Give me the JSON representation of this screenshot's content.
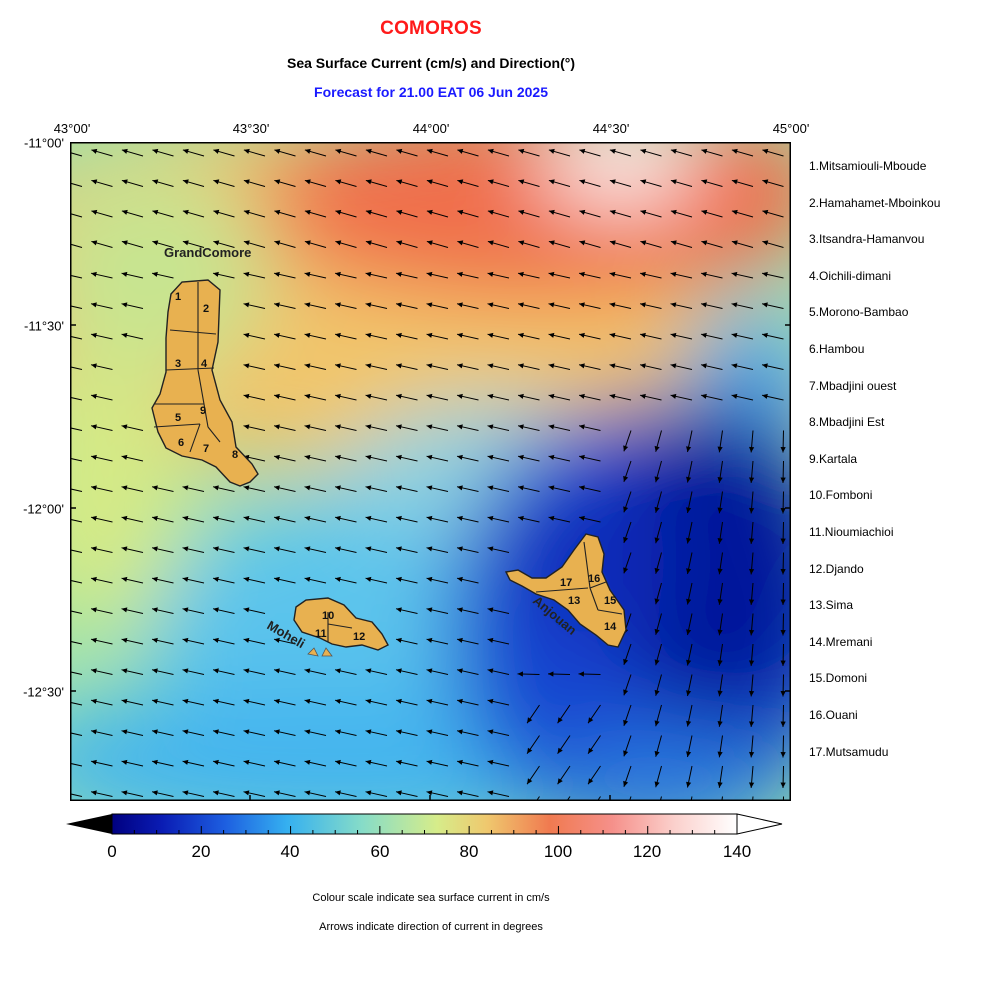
{
  "header": {
    "title": "COMOROS",
    "subtitle": "Sea Surface Current (cm/s) and Direction(°)",
    "forecast": "Forecast for  21.00 EAT 06 Jun 2025"
  },
  "axes": {
    "lon_labels": [
      "43°00'",
      "43°30'",
      "44°00'",
      "44°30'",
      "45°00'"
    ],
    "lat_labels": [
      "-11°00'",
      "-11°30'",
      "-12°00'",
      "-12°30'"
    ]
  },
  "islands": {
    "grand_comore": "GrandComore",
    "moheli": "Moheli",
    "anjouan": "Anjouan"
  },
  "region_numbers": [
    "1",
    "2",
    "3",
    "4",
    "5",
    "6",
    "7",
    "8",
    "9",
    "10",
    "11",
    "12",
    "13",
    "14",
    "15",
    "16",
    "17"
  ],
  "legend": [
    "1.Mitsamiouli-Mboude",
    "2.Hamahamet-Mboinkou",
    "3.Itsandra-Hamanvou",
    "4.Oichili-dimani",
    "5.Morono-Bambao",
    "6.Hambou",
    "7.Mbadjini ouest",
    "8.Mbadjini Est",
    "9.Kartala",
    "10.Fomboni",
    "11.Nioumiachioi",
    "12.Djando",
    "13.Sima",
    "14.Mremani",
    "15.Domoni",
    "16.Ouani",
    "17.Mutsamudu"
  ],
  "colorbar": {
    "min": 0,
    "max": 140,
    "tick_labels": [
      "0",
      "20",
      "40",
      "60",
      "80",
      "100",
      "120",
      "140"
    ]
  },
  "notes": {
    "scale": "Colour scale indicate sea surface current in cm/s",
    "arrows": "Arrows indicate direction of current in degrees"
  },
  "colors": {
    "title": "#ff1a1a",
    "forecast": "#1a1aff",
    "land": "#e8b150"
  }
}
